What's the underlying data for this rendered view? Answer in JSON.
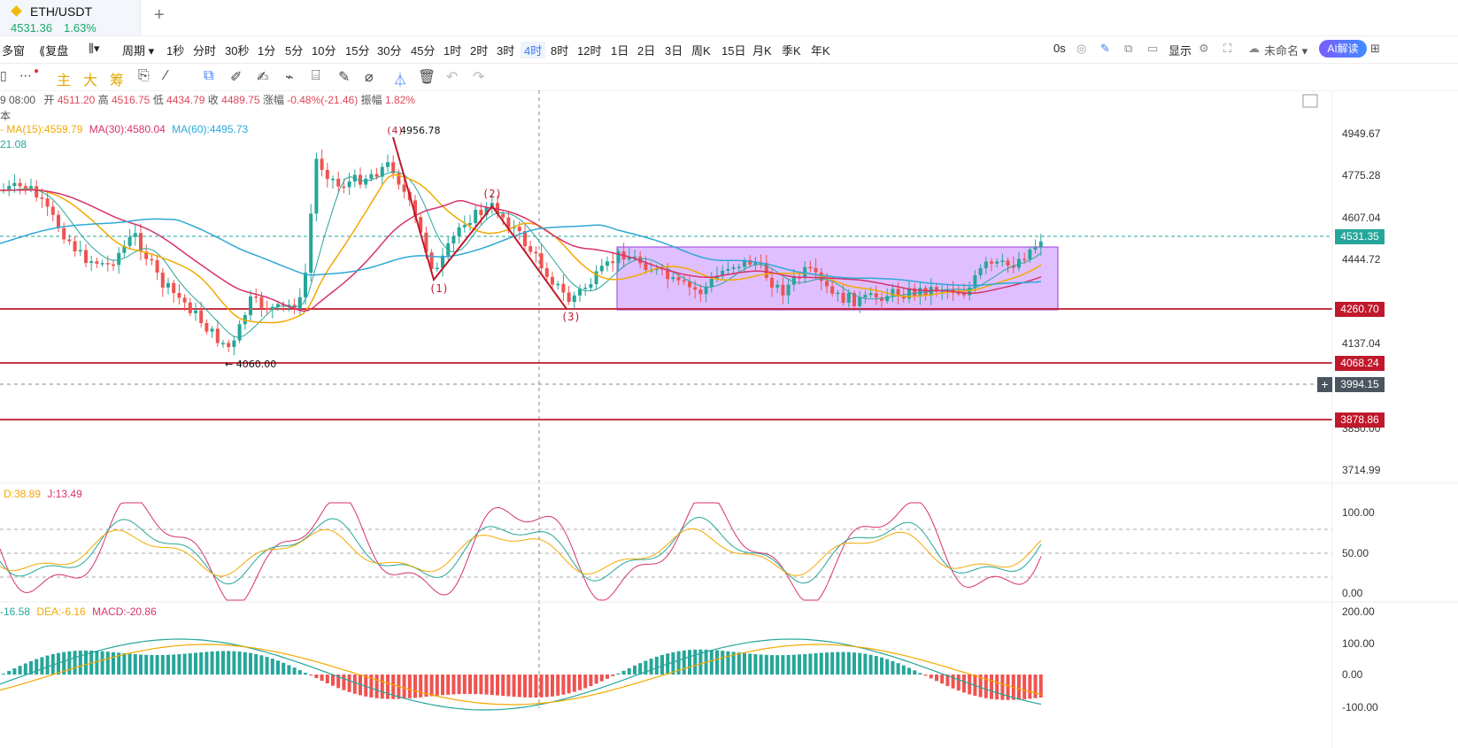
{
  "tab": {
    "symbol": "ETH/USDT",
    "price": "4531.36",
    "change": "1.63%",
    "new_tab": "+"
  },
  "toolbar": {
    "multi_window": "多窗",
    "replay": "复盘",
    "chart_type": "▾",
    "period": "周期",
    "intervals": [
      "1秒",
      "分时",
      "30秒",
      "1分",
      "5分",
      "10分",
      "15分",
      "30分",
      "45分",
      "1时",
      "2时",
      "3时",
      "4时",
      "8时",
      "12时",
      "1日",
      "2日",
      "3日",
      "周K",
      "15日",
      "月K",
      "季K",
      "年K"
    ],
    "active_interval": "4时",
    "countdown": "0s",
    "display": "显示",
    "unnamed": "未命名",
    "ai": "AI解读"
  },
  "drawbar": {
    "main": "主",
    "big": "大",
    "chip": "筹"
  },
  "ohlc": {
    "date": "9 08:00",
    "open_label": "开",
    "open": "4511.20",
    "high_label": "高",
    "high": "4516.75",
    "low_label": "低",
    "low": "4434.79",
    "close_label": "收",
    "close": "4489.75",
    "chg_label": "涨幅",
    "chg": "-0.48%(-21.46)",
    "amp_label": "振幅",
    "amp": "1.82%"
  },
  "sub_label": "本",
  "ma": {
    "ma15": "MA(15):4559.79",
    "ma30": "MA(30):4580.04",
    "ma60": "MA(60):4495.73",
    "extra": "21.08"
  },
  "kdj": {
    "d": "D:38.89",
    "j": "J:13.49"
  },
  "macd": {
    "dif": "-16.58",
    "dea": "DEA:-6.16",
    "macd": "MACD:-20.86"
  },
  "annotations": {
    "peak": "4956.78",
    "peak_wave": "(4)",
    "low": "← 4060.00",
    "wave1": "(1)",
    "wave2": "(2)",
    "wave3": "(3)"
  },
  "price_axis": [
    "4949.67",
    "4775.28",
    "4607.04",
    "4444.72",
    "4137.04",
    "3850.00",
    "3714.99"
  ],
  "price_tags": {
    "current": "4531.35",
    "line1": "4260.70",
    "line2": "4068.24",
    "cursor": "3994.15",
    "line3": "3878.86"
  },
  "kdj_axis": [
    "100.00",
    "50.00",
    "0.00"
  ],
  "macd_axis": [
    "200.00",
    "100.00",
    "0.00",
    "-100.00"
  ],
  "colors": {
    "up": "#26a69a",
    "down": "#ef5350",
    "ma15": "#f2a900",
    "ma30": "#d6336c",
    "ma60": "#2ea8d6",
    "support": "#c0182b",
    "box": "#c58bff",
    "accent": "#3a79f2"
  }
}
